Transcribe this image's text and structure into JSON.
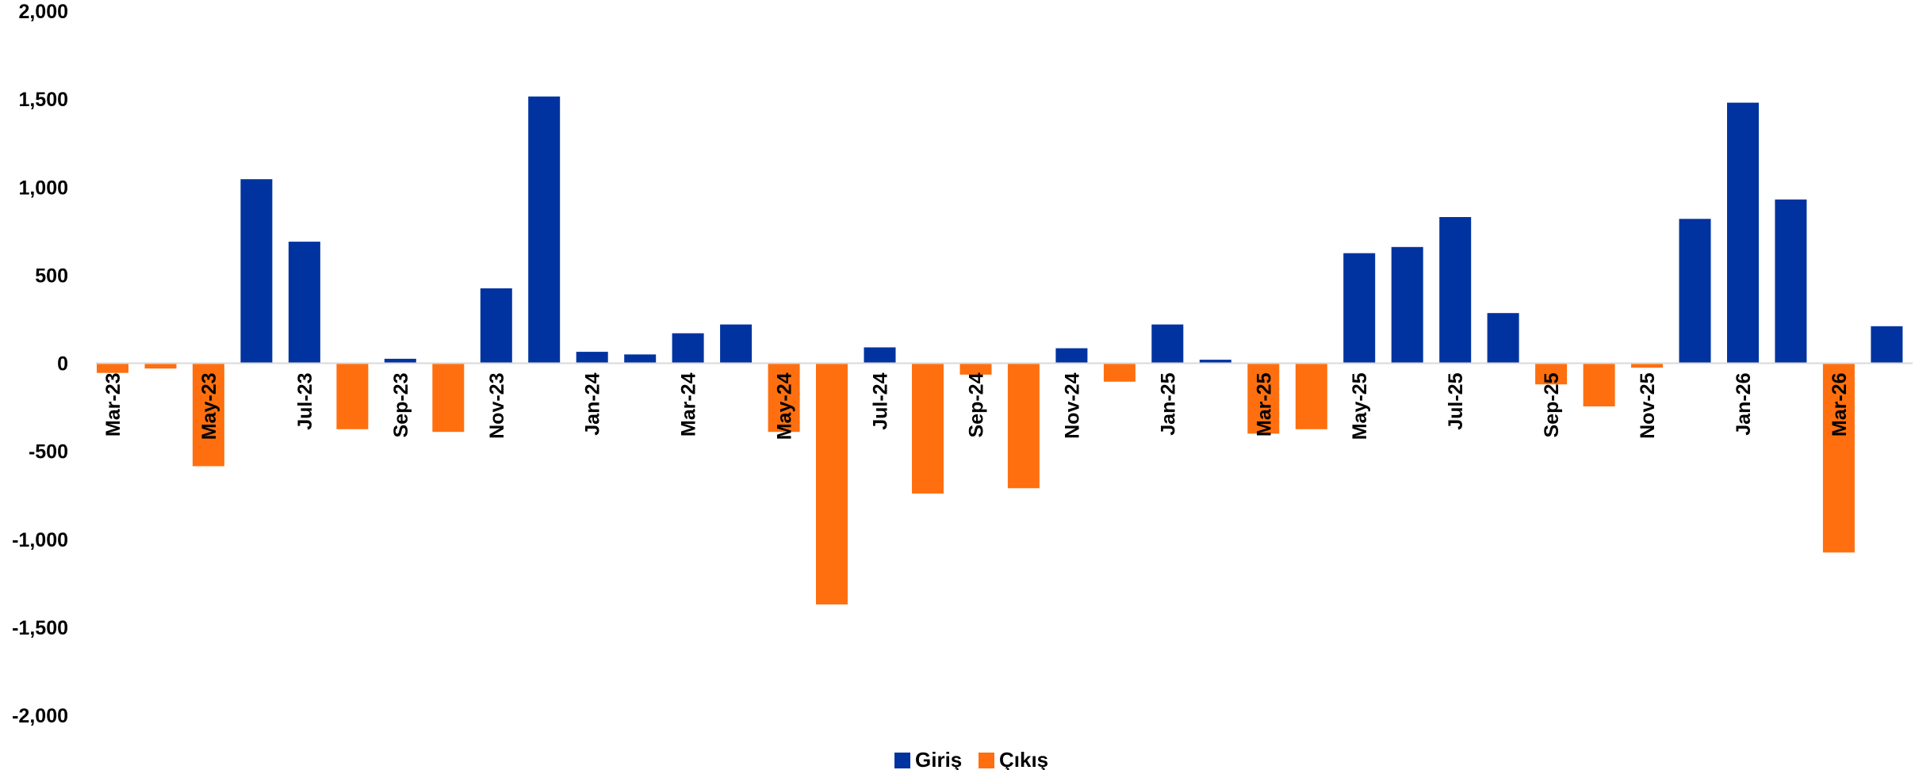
{
  "chart_data": {
    "type": "bar",
    "title": "",
    "xlabel": "",
    "ylabel": "",
    "ylim": [
      -2000,
      2000
    ],
    "yticks": [
      2000,
      1500,
      1000,
      500,
      0,
      -500,
      -1000,
      -1500,
      -2000
    ],
    "ytick_labels": [
      "2,000",
      "1,500",
      "1,000",
      "500",
      "0",
      "-500",
      "-1,000",
      "-1,500",
      "-2,000"
    ],
    "grid": false,
    "legend_position": "bottom-center",
    "categories": [
      "Mar-23",
      "Apr-23",
      "May-23",
      "Jun-23",
      "Jul-23",
      "Aug-23",
      "Sep-23",
      "Oct-23",
      "Nov-23",
      "Dec-23",
      "Jan-24",
      "Feb-24",
      "Mar-24",
      "Apr-24",
      "May-24",
      "Jun-24",
      "Jul-24",
      "Aug-24",
      "Sep-24",
      "Oct-24",
      "Nov-24",
      "Dec-24",
      "Jan-25",
      "Feb-25",
      "Mar-25",
      "Apr-25",
      "May-25",
      "Jun-25",
      "Jul-25",
      "Aug-25",
      "Sep-25",
      "Oct-25",
      "Nov-25",
      "Dec-25",
      "Jan-26",
      "Feb-26",
      "Mar-26",
      "Apr-26"
    ],
    "shown_category_labels": [
      "Mar-23",
      "May-23",
      "Jul-23",
      "Sep-23",
      "Nov-23",
      "Jan-24",
      "Mar-24",
      "May-24",
      "Jul-24",
      "Sep-24",
      "Nov-24",
      "Jan-25",
      "Mar-25",
      "May-25",
      "Jul-25",
      "Sep-25",
      "Nov-25",
      "Jan-26",
      "Mar-26"
    ],
    "values": [
      -55,
      -30,
      -585,
      1045,
      690,
      -375,
      25,
      -390,
      425,
      1515,
      65,
      50,
      170,
      220,
      -390,
      -1370,
      90,
      -740,
      -65,
      -710,
      85,
      -105,
      220,
      20,
      -400,
      -375,
      625,
      660,
      830,
      285,
      -120,
      -245,
      -25,
      820,
      1480,
      930,
      -1075,
      210
    ],
    "series": [
      {
        "name": "Giriş",
        "color": "#0033A0"
      },
      {
        "name": "Çıkış",
        "color": "#FF6F0F"
      }
    ]
  }
}
